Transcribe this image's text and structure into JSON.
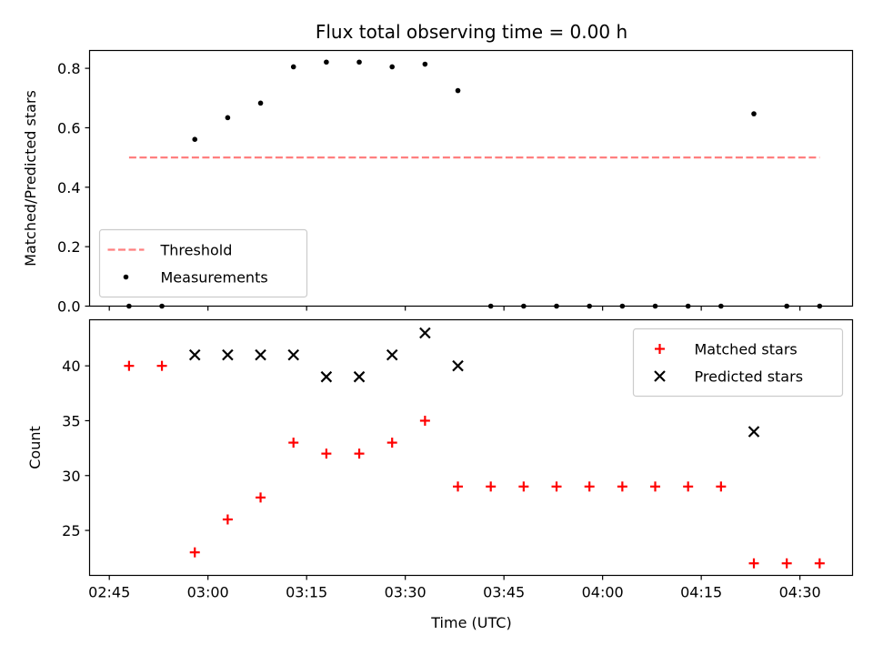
{
  "chart_data": [
    {
      "type": "scatter",
      "title": "Flux total observing time = 0.00 h",
      "ylabel": "Matched/Predicted stars",
      "xlim": [
        "02:42",
        "04:38"
      ],
      "ylim": [
        0,
        0.86
      ],
      "xticks": [
        "02:45",
        "03:00",
        "03:15",
        "03:30",
        "03:45",
        "04:00",
        "04:15",
        "04:30"
      ],
      "yticks": [
        "0.0",
        "0.2",
        "0.4",
        "0.6",
        "0.8"
      ],
      "legend_position": "lower-left",
      "series": [
        {
          "name": "Threshold",
          "style": "dashed-line",
          "color": "#ff7f7f",
          "points": [
            [
              "02:48",
              0.5
            ],
            [
              "04:33",
              0.5
            ]
          ]
        },
        {
          "name": "Measurements",
          "style": "dot",
          "color": "#000000",
          "points": [
            [
              "02:48",
              0.0
            ],
            [
              "02:53",
              0.0
            ],
            [
              "02:58",
              0.561
            ],
            [
              "03:03",
              0.634
            ],
            [
              "03:08",
              0.683
            ],
            [
              "03:13",
              0.805
            ],
            [
              "03:18",
              0.821
            ],
            [
              "03:23",
              0.821
            ],
            [
              "03:28",
              0.805
            ],
            [
              "03:33",
              0.814
            ],
            [
              "03:38",
              0.725
            ],
            [
              "03:43",
              0.0
            ],
            [
              "03:48",
              0.0
            ],
            [
              "03:53",
              0.0
            ],
            [
              "03:58",
              0.0
            ],
            [
              "04:03",
              0.0
            ],
            [
              "04:08",
              0.0
            ],
            [
              "04:13",
              0.0
            ],
            [
              "04:18",
              0.0
            ],
            [
              "04:23",
              0.647
            ],
            [
              "04:28",
              0.0
            ],
            [
              "04:33",
              0.0
            ]
          ]
        }
      ]
    },
    {
      "type": "scatter",
      "xlabel": "Time (UTC)",
      "ylabel": "Count",
      "xlim": [
        "02:42",
        "04:38"
      ],
      "ylim": [
        20.9,
        44.2
      ],
      "xticks": [
        "02:45",
        "03:00",
        "03:15",
        "03:30",
        "03:45",
        "04:00",
        "04:15",
        "04:30"
      ],
      "yticks": [
        "25",
        "30",
        "35",
        "40"
      ],
      "legend_position": "upper-right",
      "series": [
        {
          "name": "Matched stars",
          "style": "plus",
          "color": "#ff0000",
          "points": [
            [
              "02:48",
              40
            ],
            [
              "02:53",
              40
            ],
            [
              "02:58",
              23
            ],
            [
              "03:03",
              26
            ],
            [
              "03:08",
              28
            ],
            [
              "03:13",
              33
            ],
            [
              "03:18",
              32
            ],
            [
              "03:23",
              32
            ],
            [
              "03:28",
              33
            ],
            [
              "03:33",
              35
            ],
            [
              "03:38",
              29
            ],
            [
              "03:43",
              29
            ],
            [
              "03:48",
              29
            ],
            [
              "03:53",
              29
            ],
            [
              "03:58",
              29
            ],
            [
              "04:03",
              29
            ],
            [
              "04:08",
              29
            ],
            [
              "04:13",
              29
            ],
            [
              "04:18",
              29
            ],
            [
              "04:23",
              22
            ],
            [
              "04:28",
              22
            ],
            [
              "04:33",
              22
            ]
          ]
        },
        {
          "name": "Predicted stars",
          "style": "x",
          "color": "#000000",
          "points": [
            [
              "02:58",
              41
            ],
            [
              "03:03",
              41
            ],
            [
              "03:08",
              41
            ],
            [
              "03:13",
              41
            ],
            [
              "03:18",
              39
            ],
            [
              "03:23",
              39
            ],
            [
              "03:28",
              41
            ],
            [
              "03:33",
              43
            ],
            [
              "03:38",
              40
            ],
            [
              "04:23",
              34
            ]
          ]
        }
      ]
    }
  ]
}
